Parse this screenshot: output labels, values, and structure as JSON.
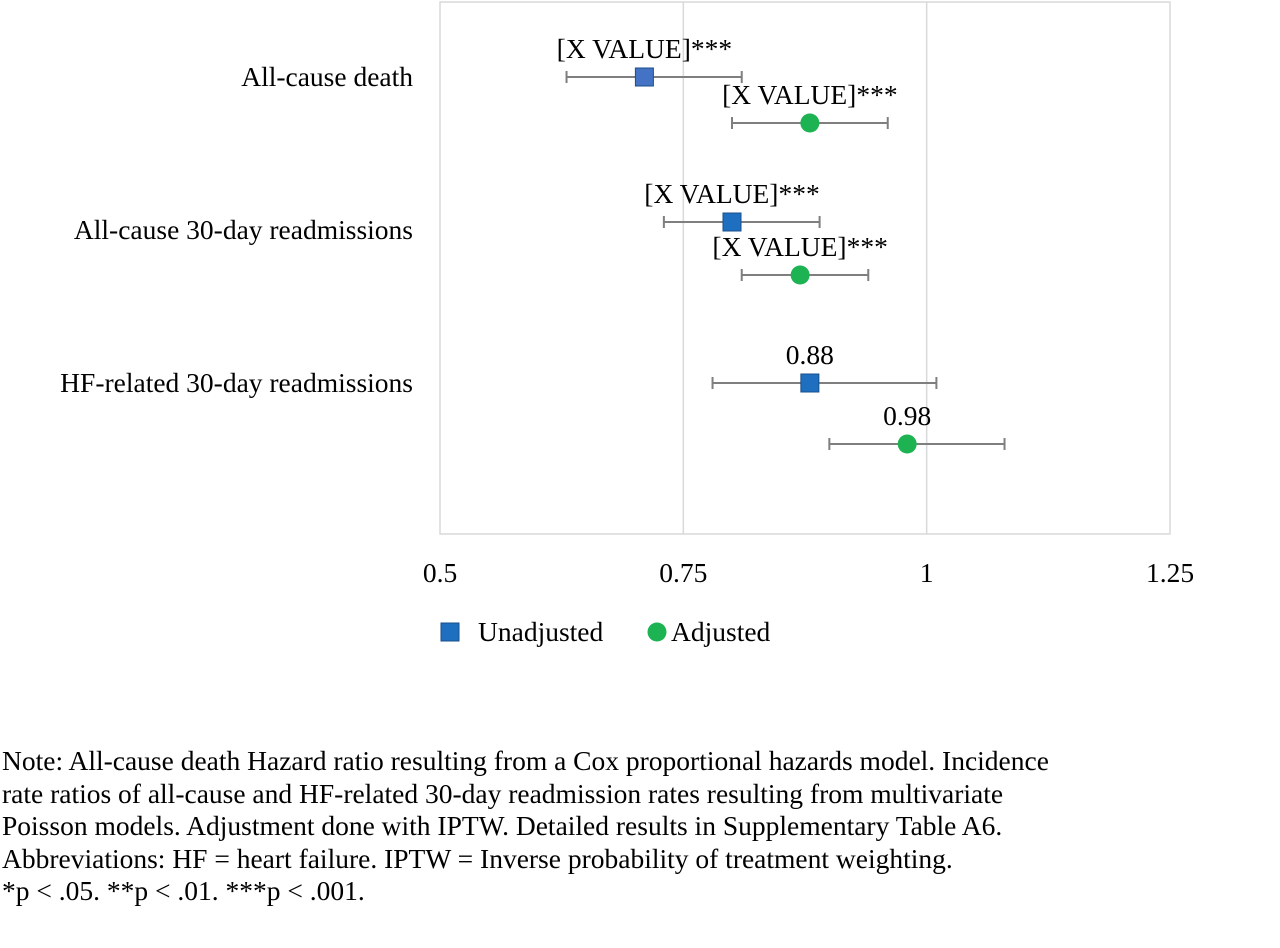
{
  "chart_data": {
    "type": "scatter",
    "subtype": "forest-plot",
    "title": "",
    "xlabel": "",
    "ylabel": "",
    "xlim": [
      0.5,
      1.25
    ],
    "xticks": [
      0.5,
      0.75,
      1,
      1.25
    ],
    "xtick_labels": [
      "0.5",
      "0.75",
      "1",
      "1.25"
    ],
    "grid": true,
    "legend_position": "bottom",
    "categories": [
      "All-cause death",
      "All-cause 30-day readmissions",
      "HF-related 30-day readmissions"
    ],
    "series": [
      {
        "name": "Unadjusted",
        "marker": "square",
        "color": "#1f6fc1",
        "values": [
          0.71,
          0.8,
          0.88
        ],
        "ci_lower": [
          0.63,
          0.73,
          0.78
        ],
        "ci_upper": [
          0.81,
          0.89,
          1.01
        ],
        "labels": [
          "[X VALUE]***",
          "[X VALUE]***",
          "0.88"
        ]
      },
      {
        "name": "Adjusted",
        "marker": "circle",
        "color": "#1db352",
        "values": [
          0.88,
          0.87,
          0.98
        ],
        "ci_lower": [
          0.8,
          0.81,
          0.9
        ],
        "ci_upper": [
          0.96,
          0.94,
          1.08
        ],
        "labels": [
          "[X VALUE]***",
          "[X VALUE]***",
          "0.98"
        ]
      }
    ]
  },
  "note_lines": [
    "Note: All-cause death Hazard ratio resulting from a Cox proportional hazards model. Incidence",
    "rate ratios of all-cause and HF-related 30-day readmission rates resulting from multivariate",
    "Poisson models. Adjustment done with IPTW. Detailed results in Supplementary Table A6.",
    "Abbreviations: HF = heart failure. IPTW = Inverse probability of treatment weighting.",
    "*p < .05. **p < .01. ***p < .001."
  ]
}
